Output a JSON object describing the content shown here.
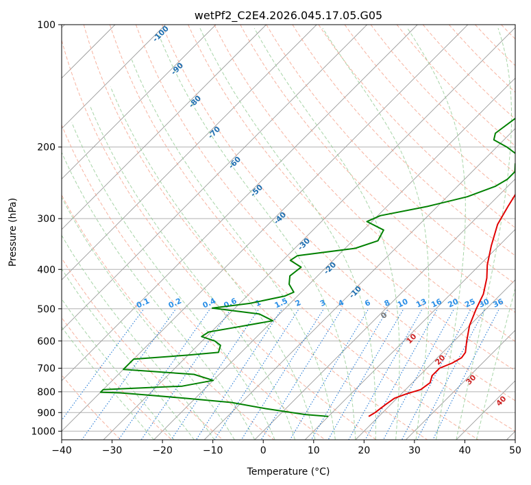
{
  "chart_data": {
    "type": "line",
    "title": "wetPf2_C2E4.2026.045.17.05.G05",
    "xlabel": "Temperature (°C)",
    "ylabel": "Pressure (hPa)",
    "xlim": [
      -40,
      50
    ],
    "ylim": [
      1050,
      100
    ],
    "y_scale": "log",
    "x_ticks": [
      "−40",
      "−30",
      "−20",
      "−10",
      "0",
      "10",
      "20",
      "30",
      "40",
      "50"
    ],
    "y_ticks": [
      {
        "value": 100,
        "label": "100"
      },
      {
        "value": 200,
        "label": "200"
      },
      {
        "value": 300,
        "label": "300"
      },
      {
        "value": 400,
        "label": "400"
      },
      {
        "value": 500,
        "label": "500"
      },
      {
        "value": 600,
        "label": "600"
      },
      {
        "value": 700,
        "label": "700"
      },
      {
        "value": 800,
        "label": "800"
      },
      {
        "value": 900,
        "label": "900"
      },
      {
        "value": 1000,
        "label": "1000"
      }
    ],
    "grid": true,
    "series": [
      {
        "color": "#e00000",
        "points": [
          [
            18.0,
            920
          ],
          [
            18.5,
            900
          ],
          [
            19.0,
            860
          ],
          [
            19.5,
            830
          ],
          [
            21.0,
            810
          ],
          [
            23.0,
            790
          ],
          [
            23.5,
            760
          ],
          [
            22.5,
            730
          ],
          [
            22.5,
            700
          ],
          [
            24.0,
            680
          ],
          [
            24.8,
            660
          ],
          [
            24.5,
            640
          ],
          [
            22.5,
            600
          ],
          [
            20.0,
            550
          ],
          [
            18.0,
            500
          ],
          [
            16.5,
            460
          ],
          [
            14.0,
            420
          ],
          [
            11.5,
            390
          ],
          [
            8.5,
            350
          ],
          [
            5.5,
            310
          ],
          [
            4.0,
            280
          ],
          [
            2.5,
            250
          ],
          [
            1.5,
            225
          ],
          [
            2.5,
            205
          ],
          [
            4.5,
            190
          ],
          [
            5.0,
            178
          ],
          [
            6.5,
            165
          ],
          [
            7.5,
            150
          ],
          [
            7.3,
            140
          ],
          [
            7.0,
            130
          ],
          [
            7.3,
            120
          ],
          [
            7.5,
            110
          ],
          [
            8.5,
            100
          ]
        ]
      },
      {
        "color": "#008000",
        "points": [
          [
            10.0,
            920
          ],
          [
            5.0,
            910
          ],
          [
            -4.0,
            880
          ],
          [
            -12.0,
            850
          ],
          [
            -22.0,
            830
          ],
          [
            -30.0,
            815
          ],
          [
            -36.0,
            805
          ],
          [
            -40.0,
            802
          ],
          [
            -40.0,
            790
          ],
          [
            -25.0,
            775
          ],
          [
            -20.0,
            750
          ],
          [
            -25.0,
            725
          ],
          [
            -40.0,
            705
          ],
          [
            -40.0,
            665
          ],
          [
            -30.0,
            650
          ],
          [
            -24.5,
            640
          ],
          [
            -25.5,
            615
          ],
          [
            -27.5,
            600
          ],
          [
            -31.0,
            585
          ],
          [
            -30.5,
            570
          ],
          [
            -26.0,
            555
          ],
          [
            -20.0,
            535
          ],
          [
            -24.0,
            515
          ],
          [
            -34.5,
            498
          ],
          [
            -28.0,
            485
          ],
          [
            -22.5,
            465
          ],
          [
            -21.5,
            455
          ],
          [
            -24.0,
            435
          ],
          [
            -25.5,
            415
          ],
          [
            -25.0,
            395
          ],
          [
            -28.5,
            380
          ],
          [
            -28.0,
            370
          ],
          [
            -18.0,
            355
          ],
          [
            -15.0,
            340
          ],
          [
            -16.0,
            320
          ],
          [
            -21.0,
            305
          ],
          [
            -19.5,
            295
          ],
          [
            -12.0,
            280
          ],
          [
            -6.0,
            265
          ],
          [
            -2.5,
            250
          ],
          [
            -1.5,
            240
          ],
          [
            -1.5,
            230
          ],
          [
            -3.0,
            220
          ],
          [
            -4.0,
            210
          ],
          [
            -8.0,
            200
          ],
          [
            -12.0,
            192
          ],
          [
            -13.0,
            185
          ],
          [
            -12.0,
            170
          ],
          [
            -10.5,
            155
          ],
          [
            -9.0,
            142
          ],
          [
            -7.5,
            130
          ],
          [
            -5.0,
            120
          ],
          [
            -3.5,
            110
          ],
          [
            -0.5,
            100
          ]
        ]
      }
    ],
    "annotations": {
      "dry_adiabats": [
        "-100",
        "-90",
        "-80",
        "-70",
        "-60",
        "-50",
        "-40",
        "-30",
        "-20",
        "-10"
      ],
      "moist_adiabats": [
        "0",
        "10",
        "20",
        "30",
        "40"
      ],
      "mixing_ratios": [
        "0.1",
        "0.2",
        "0.4",
        "0.6",
        "1",
        "1.5",
        "2",
        "3",
        "4",
        "6",
        "8",
        "10",
        "13",
        "16",
        "20",
        "25",
        "30",
        "36"
      ]
    },
    "colors": {
      "temperature": "#e00000",
      "dewpoint": "#008000",
      "dry_adiabat": "#f6a58e",
      "moist_adiabat": "#96cc96",
      "mixing_ratio": "#1f77d4",
      "dry_label": "#1f6fb0",
      "moist_label": "#cc2222",
      "mixing_label": "#2b8fe6",
      "isotherm": "#777777"
    }
  }
}
